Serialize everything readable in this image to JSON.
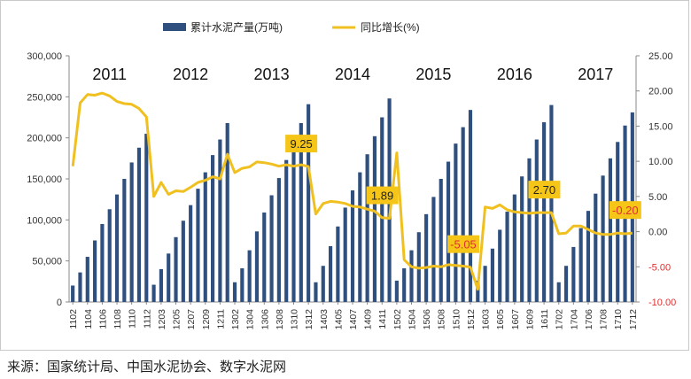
{
  "source": "来源：国家统计局、中国水泥协会、数字水泥网",
  "colors": {
    "bar": "#2f4f7f",
    "line": "#f0c020",
    "callout": "#f5c518",
    "neg_axis": "#e03030"
  },
  "chart_data": {
    "type": "bar",
    "title": "",
    "legend_position": "top",
    "series": [
      {
        "name": "累计水泥产量(万吨)",
        "type": "bar",
        "axis": "left",
        "values": [
          20000,
          36000,
          55000,
          75000,
          95000,
          113000,
          131000,
          150000,
          170000,
          188000,
          205000,
          21000,
          40000,
          59000,
          79000,
          99000,
          118000,
          138000,
          158000,
          179000,
          198000,
          218000,
          24000,
          41000,
          63000,
          86000,
          109000,
          130000,
          151000,
          173000,
          194000,
          218000,
          241000,
          24000,
          44000,
          68000,
          92000,
          115000,
          136000,
          158000,
          180000,
          202000,
          225000,
          248000,
          26000,
          41000,
          63000,
          85000,
          107000,
          128000,
          150000,
          171000,
          193000,
          213000,
          234000,
          26000,
          44000,
          65000,
          88000,
          110000,
          131000,
          153000,
          175000,
          198000,
          219000,
          240000,
          24000,
          44000,
          67000,
          90000,
          111000,
          132000,
          154000,
          175000,
          195000,
          215000,
          231000
        ]
      },
      {
        "name": "同比增长(%)",
        "type": "line",
        "axis": "right",
        "values": [
          9.3,
          18.3,
          19.5,
          19.4,
          19.7,
          19.3,
          18.5,
          18.2,
          18.1,
          17.5,
          16.3,
          5.0,
          7.0,
          5.3,
          5.8,
          5.7,
          6.3,
          7.0,
          7.3,
          7.8,
          7.5,
          11.0,
          8.4,
          9.0,
          9.2,
          9.9,
          9.8,
          9.6,
          9.3,
          9.5,
          9.3,
          9.5,
          9.25,
          2.5,
          4.0,
          4.3,
          4.2,
          4.0,
          3.6,
          3.5,
          3.2,
          2.9,
          2.0,
          1.89,
          11.2,
          -4.0,
          -5.0,
          -5.2,
          -5.1,
          -4.9,
          -5.0,
          -4.7,
          -4.8,
          -4.9,
          -5.05,
          -8.2,
          3.5,
          3.3,
          3.8,
          3.1,
          2.8,
          2.7,
          2.6,
          2.7,
          2.7,
          2.7,
          -0.3,
          -0.2,
          0.8,
          0.8,
          0.3,
          -0.2,
          -0.4,
          -0.4,
          -0.2,
          -0.3,
          -0.2
        ]
      }
    ],
    "x": [
      "1102",
      "1103",
      "1104",
      "1105",
      "1106",
      "1107",
      "1108",
      "1109",
      "1110",
      "1111",
      "1112",
      "1202",
      "1203",
      "1204",
      "1205",
      "1206",
      "1207",
      "1208",
      "1209",
      "1210",
      "1211",
      "1212",
      "1302",
      "1303",
      "1304",
      "1305",
      "1306",
      "1307",
      "1308",
      "1309",
      "1310",
      "1311",
      "1312",
      "1402",
      "1403",
      "1404",
      "1405",
      "1406",
      "1407",
      "1408",
      "1409",
      "1410",
      "1411",
      "1412",
      "1502",
      "1503",
      "1504",
      "1505",
      "1506",
      "1507",
      "1508",
      "1509",
      "1510",
      "1511",
      "1512",
      "1602",
      "1603",
      "1604",
      "1605",
      "1606",
      "1607",
      "1608",
      "1609",
      "1610",
      "1611",
      "1612",
      "1702",
      "1703",
      "1704",
      "1705",
      "1706",
      "1707",
      "1708",
      "1709",
      "1710",
      "1711",
      "1712"
    ],
    "x_tick_labels": [
      "1102",
      "1104",
      "1106",
      "1108",
      "1110",
      "1112",
      "1203",
      "1205",
      "1207",
      "1209",
      "1211",
      "1302",
      "1304",
      "1306",
      "1308",
      "1310",
      "1312",
      "1403",
      "1405",
      "1407",
      "1409",
      "1411",
      "1502",
      "1504",
      "1506",
      "1508",
      "1510",
      "1512",
      "1603",
      "1605",
      "1607",
      "1609",
      "1611",
      "1702",
      "1704",
      "1706",
      "1708",
      "1710",
      "1712"
    ],
    "ylim_left": [
      0,
      300000
    ],
    "yticks_left": [
      "0",
      "50,000",
      "100,000",
      "150,000",
      "200,000",
      "250,000",
      "300,000"
    ],
    "ylim_right": [
      -10,
      25
    ],
    "yticks_right": [
      "-10.00",
      "-5.00",
      "0.00",
      "5.00",
      "10.00",
      "15.00",
      "20.00",
      "25.00"
    ],
    "year_labels": [
      "2011",
      "2012",
      "2013",
      "2014",
      "2015",
      "2016",
      "2017"
    ],
    "callouts": [
      {
        "index": 32,
        "text": "9.25"
      },
      {
        "index": 43,
        "text": "1.89"
      },
      {
        "index": 54,
        "text": "-5.05"
      },
      {
        "index": 65,
        "text": "2.70"
      },
      {
        "index": 76,
        "text": "-0.20"
      }
    ],
    "grid": false
  }
}
